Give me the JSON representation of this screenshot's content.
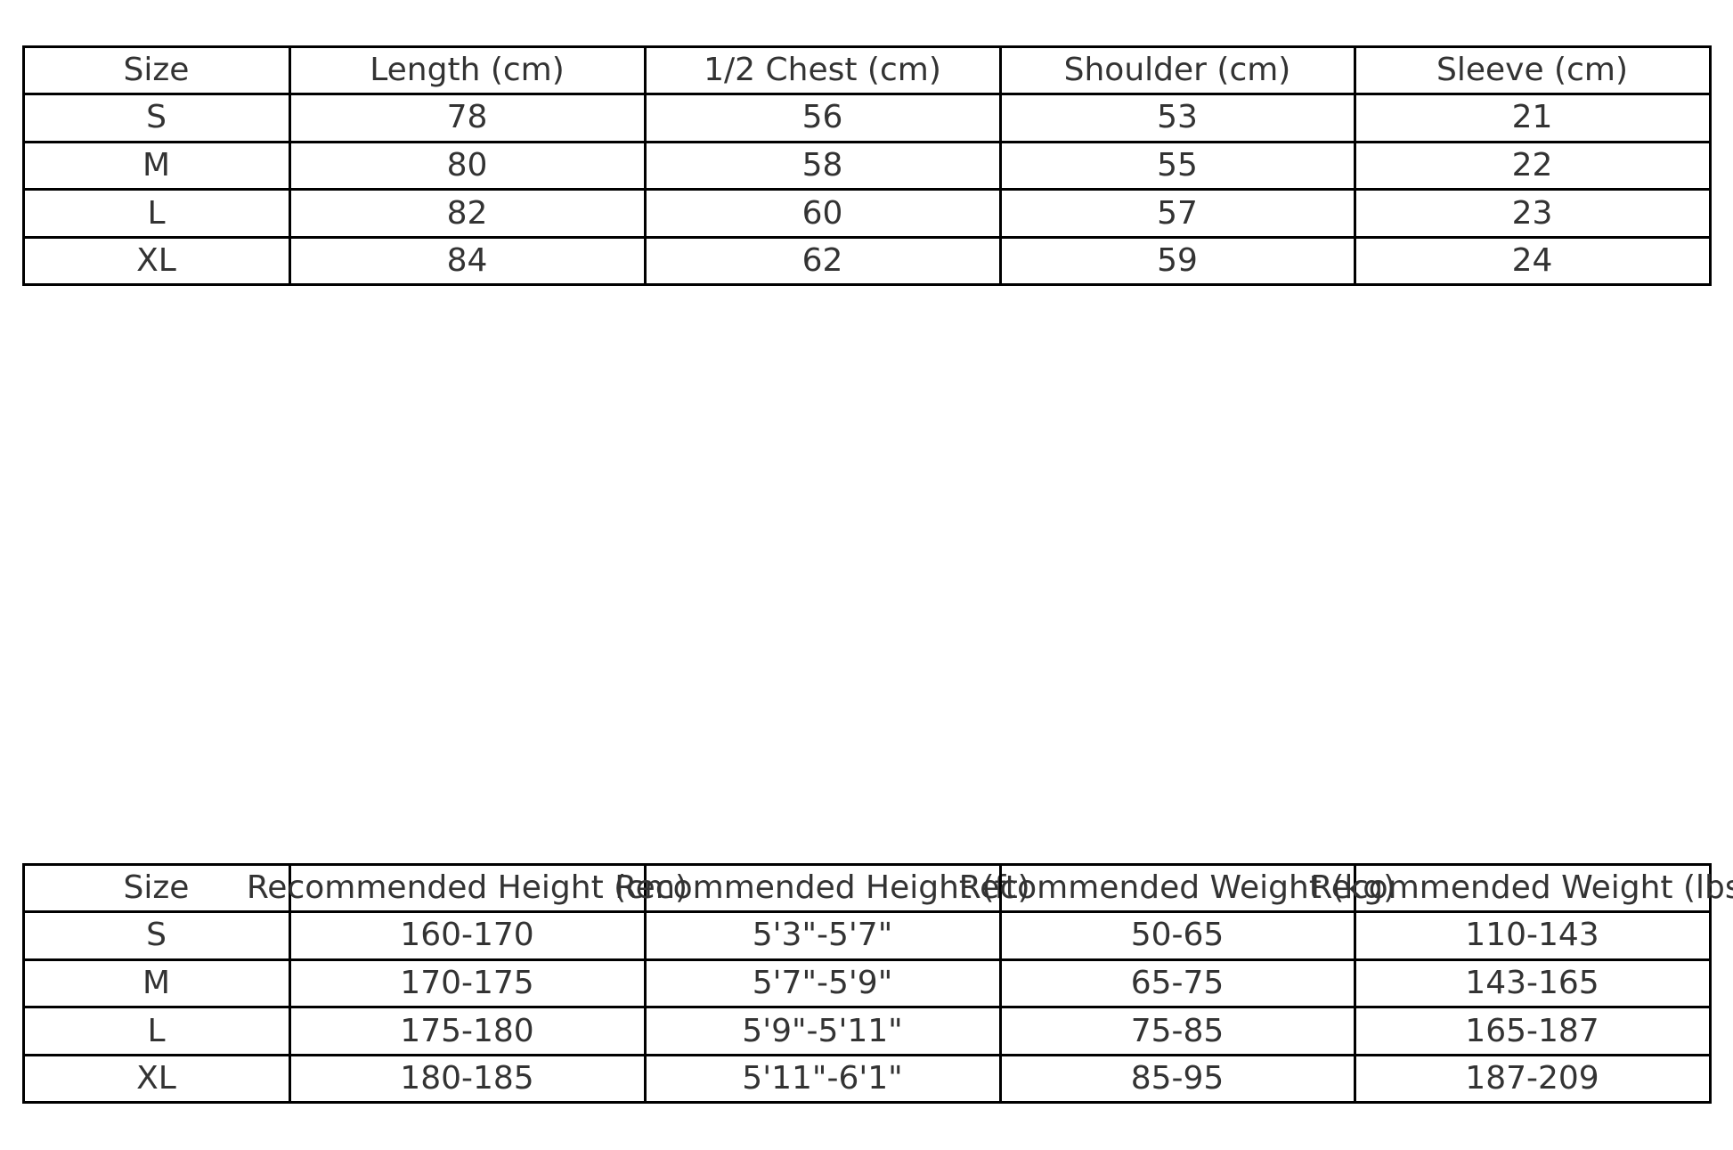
{
  "tables": [
    {
      "name": "measurements-table",
      "headers": [
        "Size",
        "Length (cm)",
        "1/2 Chest (cm)",
        "Shoulder (cm)",
        "Sleeve (cm)"
      ],
      "rows": [
        [
          "S",
          "78",
          "56",
          "53",
          "21"
        ],
        [
          "M",
          "80",
          "58",
          "55",
          "22"
        ],
        [
          "L",
          "82",
          "60",
          "57",
          "23"
        ],
        [
          "XL",
          "84",
          "62",
          "59",
          "24"
        ]
      ]
    },
    {
      "name": "recommendation-table",
      "headers": [
        "Size",
        "Recommended Height (cm)",
        "Recommended Height (ft)",
        "Recommended Weight (kg)",
        "Recommended Weight (lbs)"
      ],
      "rows": [
        [
          "S",
          "160-170",
          "5'3\"-5'7\"",
          "50-65",
          "110-143"
        ],
        [
          "M",
          "170-175",
          "5'7\"-5'9\"",
          "65-75",
          "143-165"
        ],
        [
          "L",
          "175-180",
          "5'9\"-5'11\"",
          "75-85",
          "165-187"
        ],
        [
          "XL",
          "180-185",
          "5'11\"-6'1\"",
          "85-95",
          "187-209"
        ]
      ]
    }
  ]
}
